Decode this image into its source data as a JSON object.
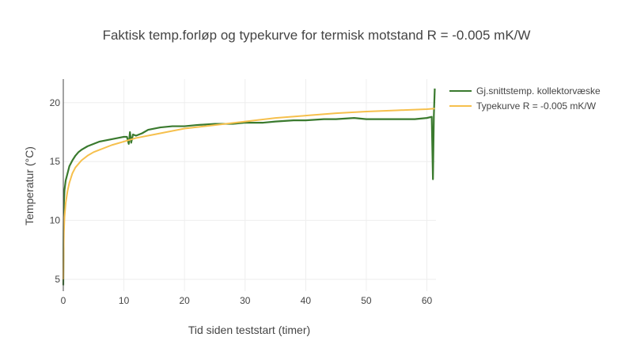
{
  "chart_data": {
    "type": "line",
    "title": "Faktisk temp.forløp og typekurve for termisk motstand R = -0.005 mK/W",
    "xlabel": "Tid siden teststart (timer)",
    "ylabel": "Temperatur (°C)",
    "xlim": [
      0,
      61.5
    ],
    "ylim": [
      4,
      22
    ],
    "x_ticks": [
      0,
      10,
      20,
      30,
      40,
      50,
      60
    ],
    "y_ticks": [
      5,
      10,
      15,
      20
    ],
    "grid": true,
    "legend_position": "top-right",
    "series": [
      {
        "name": "Gj.snittstemp. kollektorvæske",
        "color": "#3a7a2e",
        "points": [
          [
            0,
            4.5
          ],
          [
            0.05,
            9.0
          ],
          [
            0.1,
            11.5
          ],
          [
            0.2,
            12.6
          ],
          [
            0.4,
            13.4
          ],
          [
            0.7,
            14.0
          ],
          [
            1.0,
            14.6
          ],
          [
            1.5,
            15.1
          ],
          [
            2,
            15.5
          ],
          [
            2.5,
            15.8
          ],
          [
            3,
            16.0
          ],
          [
            4,
            16.3
          ],
          [
            5,
            16.5
          ],
          [
            6,
            16.7
          ],
          [
            7,
            16.8
          ],
          [
            8,
            16.9
          ],
          [
            9,
            17.0
          ],
          [
            10,
            17.1
          ],
          [
            10.5,
            17.1
          ],
          [
            10.8,
            16.5
          ],
          [
            11.0,
            17.5
          ],
          [
            11.2,
            16.6
          ],
          [
            11.5,
            17.3
          ],
          [
            12,
            17.2
          ],
          [
            13,
            17.4
          ],
          [
            14,
            17.7
          ],
          [
            15,
            17.8
          ],
          [
            16,
            17.9
          ],
          [
            18,
            18.0
          ],
          [
            20,
            18.0
          ],
          [
            22,
            18.1
          ],
          [
            25,
            18.2
          ],
          [
            28,
            18.2
          ],
          [
            30,
            18.3
          ],
          [
            33,
            18.3
          ],
          [
            35,
            18.4
          ],
          [
            38,
            18.5
          ],
          [
            40,
            18.5
          ],
          [
            43,
            18.6
          ],
          [
            45,
            18.6
          ],
          [
            48,
            18.7
          ],
          [
            50,
            18.6
          ],
          [
            53,
            18.6
          ],
          [
            55,
            18.6
          ],
          [
            58,
            18.6
          ],
          [
            60,
            18.7
          ],
          [
            60.8,
            18.8
          ],
          [
            61.0,
            13.5
          ],
          [
            61.15,
            18.9
          ],
          [
            61.3,
            21.2
          ]
        ]
      },
      {
        "name": "Typekurve R = -0.005 mK/W",
        "color": "#f6c04d",
        "points": [
          [
            0,
            5.0
          ],
          [
            0.05,
            7.5
          ],
          [
            0.1,
            9.0
          ],
          [
            0.2,
            10.3
          ],
          [
            0.4,
            11.5
          ],
          [
            0.7,
            12.5
          ],
          [
            1.0,
            13.2
          ],
          [
            1.5,
            14.0
          ],
          [
            2,
            14.5
          ],
          [
            3,
            15.1
          ],
          [
            4,
            15.5
          ],
          [
            5,
            15.8
          ],
          [
            6,
            16.0
          ],
          [
            8,
            16.4
          ],
          [
            10,
            16.7
          ],
          [
            12,
            17.0
          ],
          [
            15,
            17.3
          ],
          [
            18,
            17.6
          ],
          [
            20,
            17.8
          ],
          [
            25,
            18.1
          ],
          [
            30,
            18.4
          ],
          [
            35,
            18.7
          ],
          [
            40,
            18.9
          ],
          [
            45,
            19.1
          ],
          [
            50,
            19.25
          ],
          [
            55,
            19.35
          ],
          [
            60,
            19.45
          ],
          [
            61.3,
            19.5
          ]
        ]
      }
    ]
  }
}
